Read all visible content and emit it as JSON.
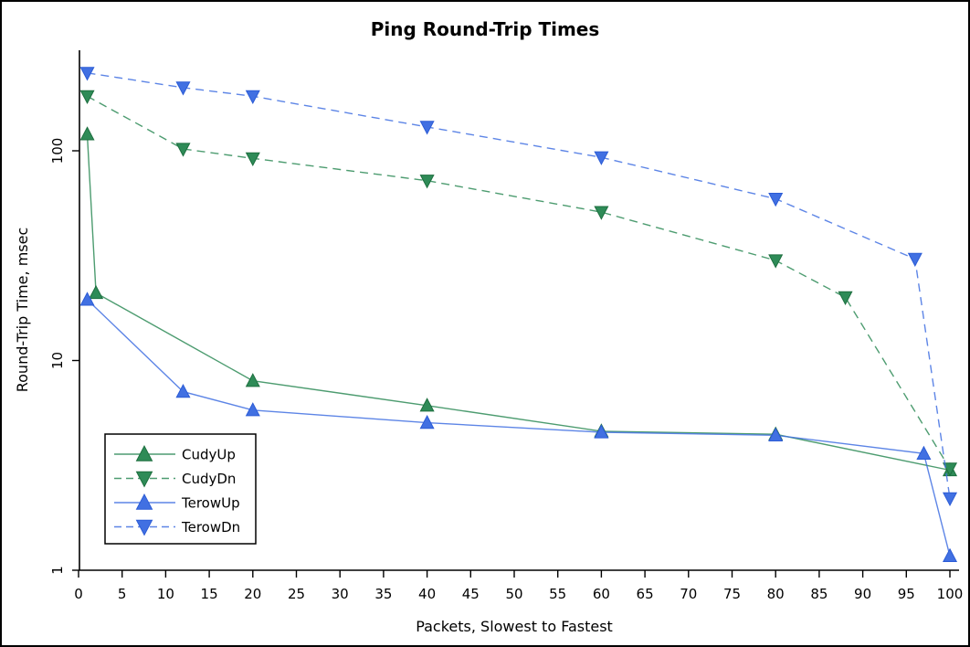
{
  "chart_data": {
    "type": "line",
    "title": "Ping Round-Trip Times",
    "xlabel": "Packets, Slowest to Fastest",
    "ylabel": "Round-Trip Time, msec",
    "x_axis": {
      "min": 0,
      "max": 100,
      "ticks": [
        0,
        5,
        10,
        15,
        20,
        25,
        30,
        35,
        40,
        45,
        50,
        55,
        60,
        65,
        70,
        75,
        80,
        85,
        90,
        95,
        100
      ]
    },
    "y_axis": {
      "scale": "log",
      "min": 1,
      "max": 300,
      "ticks": [
        1,
        10,
        100
      ]
    },
    "grid": false,
    "legend": {
      "position": "lower-left",
      "border": true
    },
    "series": [
      {
        "name": "CudyUp",
        "color": "#2e8b57",
        "edge_color": "#1d6f3f",
        "line_style": "solid",
        "marker": "triangle-up",
        "x": [
          1,
          2,
          20,
          40,
          60,
          80,
          100
        ],
        "y": [
          120,
          21,
          8,
          6.1,
          4.6,
          4.45,
          3.0
        ]
      },
      {
        "name": "CudyDn",
        "color": "#2e8b57",
        "edge_color": "#1d6f3f",
        "line_style": "dashed",
        "marker": "triangle-down",
        "x": [
          1,
          12,
          20,
          40,
          60,
          80,
          88,
          100
        ],
        "y": [
          182,
          102,
          92,
          72,
          51,
          30,
          20,
          3.05
        ]
      },
      {
        "name": "TerowUp",
        "color": "#4170e2",
        "edge_color": "#2c5cd6",
        "line_style": "solid",
        "marker": "triangle-up",
        "x": [
          1,
          12,
          20,
          40,
          60,
          80,
          97,
          100
        ],
        "y": [
          19.5,
          7.1,
          5.8,
          5.05,
          4.55,
          4.4,
          3.6,
          1.17
        ]
      },
      {
        "name": "TerowDn",
        "color": "#4170e2",
        "edge_color": "#2c5cd6",
        "line_style": "dashed",
        "marker": "triangle-down",
        "x": [
          1,
          12,
          20,
          40,
          60,
          80,
          96,
          100
        ],
        "y": [
          235,
          200,
          182,
          130,
          93,
          59,
          30.5,
          2.2
        ]
      }
    ]
  }
}
